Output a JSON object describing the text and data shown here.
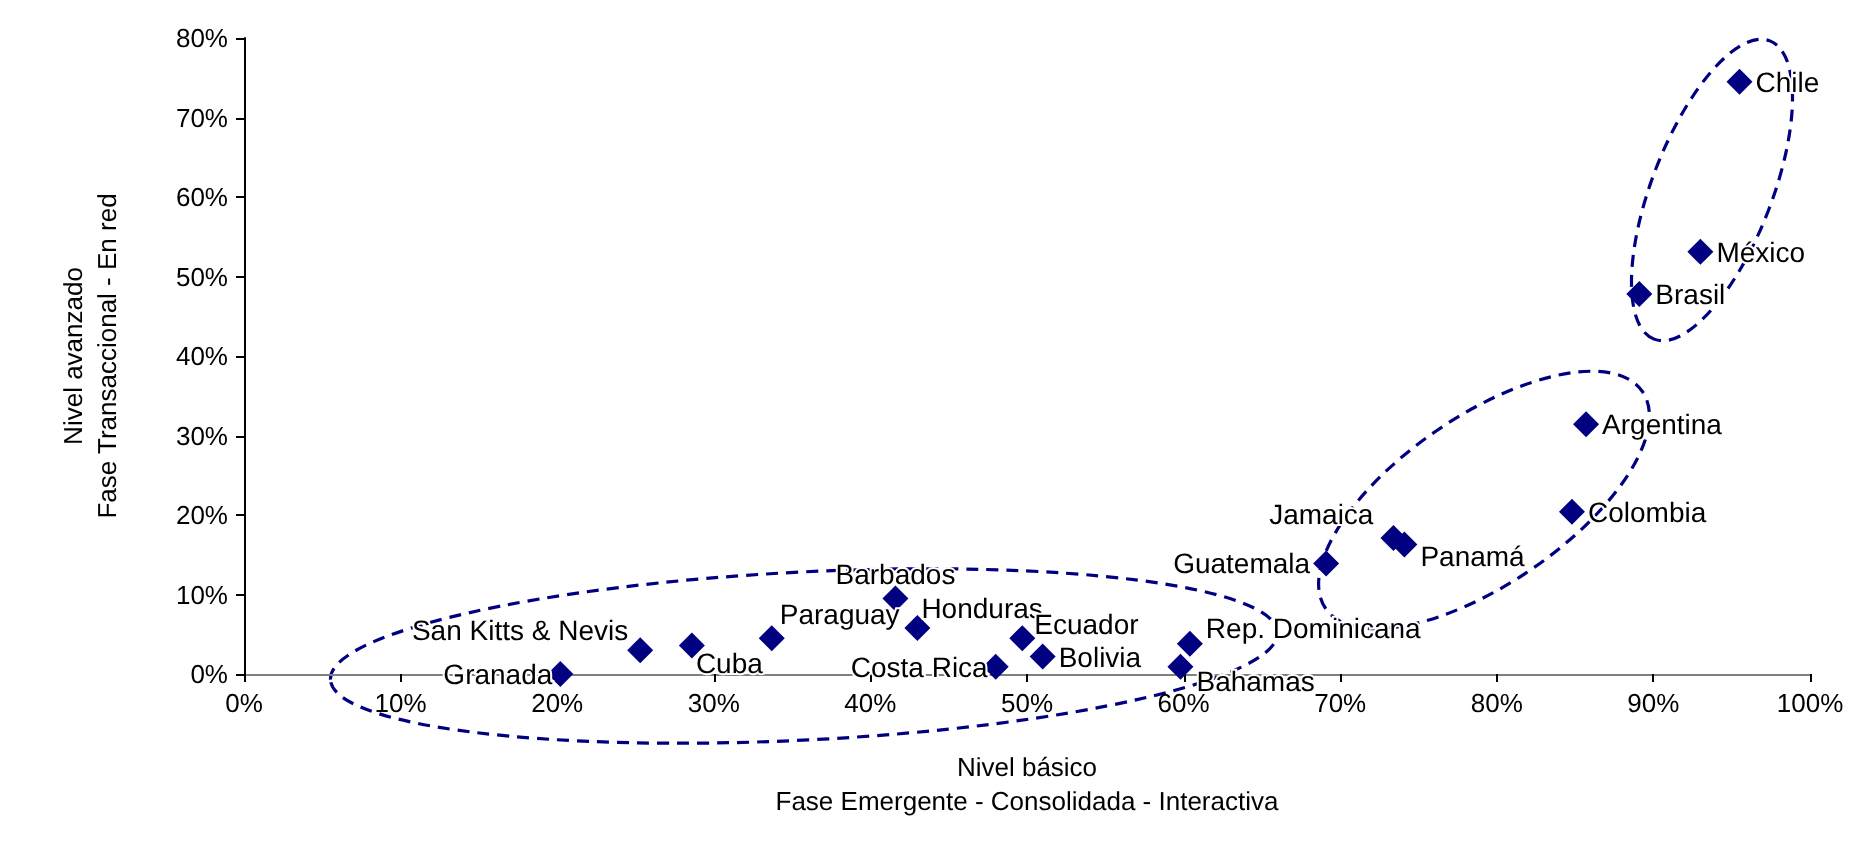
{
  "chart_data": {
    "type": "scatter",
    "xlabel": "Nivel básico\nFase Emergente - Consolidada - Interactiva",
    "ylabel": "Nivel avanzado\nFase Transaccional - En red",
    "marker": "diamond",
    "grid": false,
    "xlim": [
      0,
      100
    ],
    "ylim": [
      0,
      80
    ],
    "xticks": [
      {
        "value": 0,
        "label": "0%"
      },
      {
        "value": 10,
        "label": "10%"
      },
      {
        "value": 20,
        "label": "20%"
      },
      {
        "value": 30,
        "label": "30%"
      },
      {
        "value": 40,
        "label": "40%"
      },
      {
        "value": 50,
        "label": "50%"
      },
      {
        "value": 60,
        "label": "60%"
      },
      {
        "value": 70,
        "label": "70%"
      },
      {
        "value": 80,
        "label": "80%"
      },
      {
        "value": 90,
        "label": "90%"
      },
      {
        "value": 100,
        "label": "100%"
      }
    ],
    "yticks": [
      {
        "value": 0,
        "label": "0%"
      },
      {
        "value": 10,
        "label": "10%"
      },
      {
        "value": 20,
        "label": "20%"
      },
      {
        "value": 30,
        "label": "30%"
      },
      {
        "value": 40,
        "label": "40%"
      },
      {
        "value": 50,
        "label": "50%"
      },
      {
        "value": 60,
        "label": "60%"
      },
      {
        "value": 70,
        "label": "70%"
      },
      {
        "value": 80,
        "label": "80%"
      }
    ],
    "series": [
      {
        "color": "#000080",
        "x": [
          20.2,
          25.3,
          28.6,
          33.7,
          41.6,
          43.0,
          48.0,
          49.7,
          51.0,
          60.4,
          59.8,
          69.1,
          73.4,
          74.1,
          84.8,
          85.7,
          89.1,
          93.0,
          95.5
        ],
        "values": [
          0,
          3.0,
          3.6,
          4.5,
          9.5,
          5.8,
          0.9,
          4.5,
          2.2,
          3.8,
          0.9,
          13.9,
          17.1,
          16.3,
          20.4,
          31.4,
          47.8,
          53.1,
          74.5
        ]
      }
    ],
    "annotations": [
      {
        "text": "Granada",
        "x": 20.2,
        "y": 0
      },
      {
        "text": "San Kitts & Nevis",
        "x": 25.3,
        "y": 3.0
      },
      {
        "text": "Cuba",
        "x": 28.6,
        "y": 3.6
      },
      {
        "text": "Paraguay",
        "x": 33.7,
        "y": 4.5
      },
      {
        "text": "Barbados",
        "x": 41.6,
        "y": 9.5
      },
      {
        "text": "Honduras",
        "x": 43.0,
        "y": 5.8
      },
      {
        "text": "Costa Rica",
        "x": 48.0,
        "y": 0.9
      },
      {
        "text": "Ecuador",
        "x": 49.7,
        "y": 4.5
      },
      {
        "text": "Bolivia",
        "x": 51.0,
        "y": 2.2
      },
      {
        "text": "Rep. Dominicana",
        "x": 60.4,
        "y": 3.8
      },
      {
        "text": "Bahamas",
        "x": 59.8,
        "y": 0.9
      },
      {
        "text": "Guatemala",
        "x": 69.1,
        "y": 13.9
      },
      {
        "text": "Jamaica",
        "x": 73.4,
        "y": 17.1
      },
      {
        "text": "Panamá",
        "x": 74.1,
        "y": 16.3
      },
      {
        "text": "Colombia",
        "x": 84.8,
        "y": 20.4
      },
      {
        "text": "Argentina",
        "x": 85.7,
        "y": 31.4
      },
      {
        "text": "Brasil",
        "x": 89.1,
        "y": 47.8
      },
      {
        "text": "México",
        "x": 93.0,
        "y": 53.1
      },
      {
        "text": "Chile",
        "x": 95.5,
        "y": 74.5
      }
    ]
  }
}
